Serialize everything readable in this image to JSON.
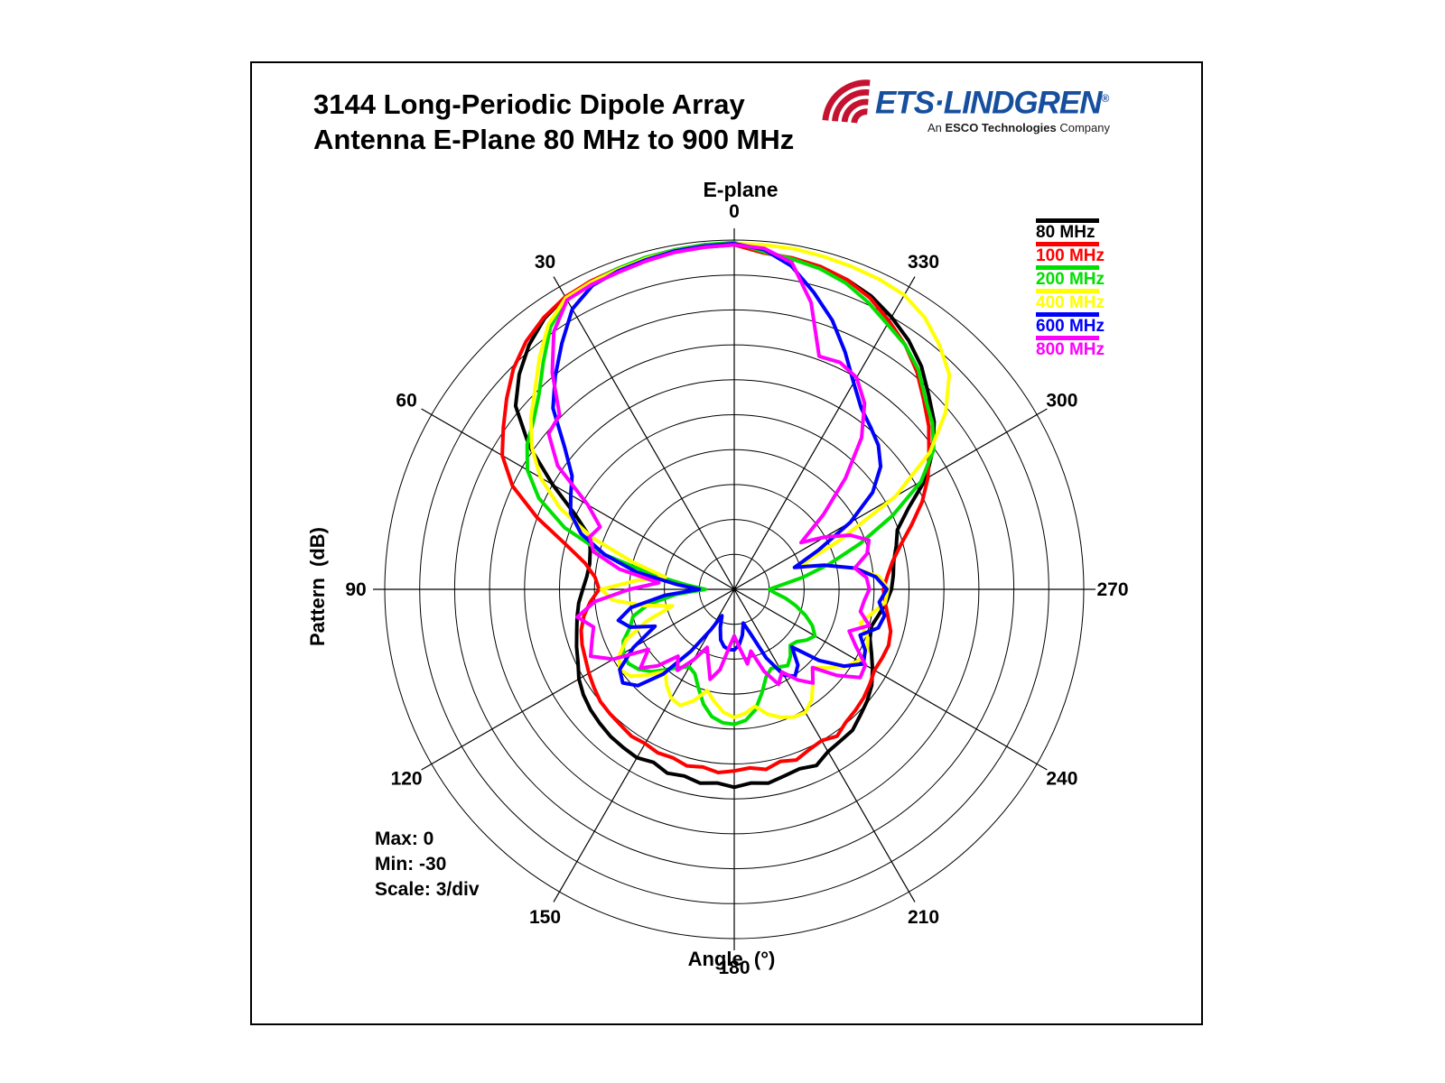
{
  "page": {
    "title_line1": "3144 Long-Periodic Dipole Array",
    "title_line2": "Antenna E-Plane 80 MHz to 900 MHz"
  },
  "logo": {
    "brand": "ETS·LINDGREN",
    "registered": "®",
    "tagline_an": "An ",
    "tagline_bold": "ESCO Technologies",
    "tagline_company": " Company",
    "brand_color": "#164f9e",
    "waves_color": "#c41230"
  },
  "annotations": {
    "max": "Max: 0",
    "min": "Min: -30",
    "scale": "Scale: 3/div"
  },
  "chart_data": {
    "type": "polar-line",
    "title": "E-plane",
    "radial_axis": {
      "label": "Pattern  (dB)",
      "max": 0,
      "min": -30,
      "scale_per_division": 3,
      "divisions": 10,
      "grid": true
    },
    "angular_axis": {
      "label": "Angle  (°)",
      "zero_position": "top",
      "direction": "counterclockwise",
      "tick_labels": [
        "0",
        "30",
        "60",
        "90",
        "120",
        "150",
        "180",
        "210",
        "240",
        "270",
        "300",
        "330"
      ],
      "spoke_step_deg": 30
    },
    "legend": {
      "position": "upper-right"
    },
    "angles_deg": [
      0,
      5,
      10,
      15,
      20,
      25,
      30,
      35,
      40,
      45,
      50,
      55,
      60,
      65,
      70,
      75,
      80,
      85,
      90,
      95,
      100,
      105,
      110,
      115,
      120,
      125,
      130,
      135,
      140,
      145,
      150,
      155,
      160,
      165,
      170,
      175,
      180,
      185,
      190,
      195,
      200,
      205,
      210,
      215,
      220,
      225,
      230,
      235,
      240,
      245,
      250,
      255,
      260,
      265,
      270,
      275,
      280,
      285,
      290,
      295,
      300,
      305,
      310,
      315,
      320,
      325,
      330,
      335,
      340,
      345,
      350,
      355
    ],
    "series": [
      {
        "name": "80 MHz",
        "color": "#000000",
        "values_db": [
          -0.3,
          -0.3,
          -0.4,
          -0.5,
          -0.7,
          -0.85,
          -1.0,
          -1.6,
          -2.6,
          -3.9,
          -5.5,
          -8.5,
          -12.0,
          -15.0,
          -16.8,
          -17.2,
          -17.4,
          -17.3,
          -17.0,
          -16.6,
          -16.3,
          -16.0,
          -15.6,
          -15.2,
          -14.6,
          -14.2,
          -13.9,
          -13.7,
          -13.5,
          -13.4,
          -13.3,
          -13.6,
          -13.2,
          -13.4,
          -13.1,
          -13.3,
          -13.0,
          -13.3,
          -13.1,
          -13.4,
          -13.6,
          -13.3,
          -13.9,
          -14.1,
          -14.2,
          -14.7,
          -15.1,
          -15.6,
          -16.3,
          -17.0,
          -17.6,
          -17.8,
          -17.4,
          -16.9,
          -16.5,
          -16.3,
          -16.1,
          -15.6,
          -15.1,
          -13.5,
          -11.0,
          -9.2,
          -7.6,
          -6.4,
          -5.0,
          -3.9,
          -3.0,
          -2.2,
          -1.7,
          -1.4,
          -1.2,
          -0.9
        ]
      },
      {
        "name": "100 MHz",
        "color": "#ff0000",
        "values_db": [
          -0.4,
          -0.5,
          -0.6,
          -0.6,
          -0.7,
          -0.8,
          -1.0,
          -1.5,
          -2.2,
          -3.2,
          -4.5,
          -5.8,
          -7.0,
          -9.0,
          -12.0,
          -15.0,
          -17.0,
          -18.0,
          -18.4,
          -17.6,
          -16.9,
          -16.4,
          -16.1,
          -15.9,
          -15.6,
          -15.3,
          -15.0,
          -14.9,
          -14.8,
          -14.6,
          -14.7,
          -14.5,
          -14.6,
          -14.3,
          -14.5,
          -14.2,
          -14.4,
          -14.6,
          -14.3,
          -14.7,
          -14.4,
          -14.8,
          -15.0,
          -14.6,
          -15.1,
          -15.3,
          -15.5,
          -15.8,
          -16.1,
          -16.0,
          -15.9,
          -16.1,
          -16.6,
          -17.0,
          -17.2,
          -16.8,
          -16.2,
          -15.2,
          -13.8,
          -12.2,
          -10.8,
          -9.6,
          -8.2,
          -7.0,
          -5.6,
          -4.4,
          -3.4,
          -2.4,
          -1.7,
          -1.3,
          -1.1,
          -1.0
        ]
      },
      {
        "name": "200 MHz",
        "color": "#00e000",
        "values_db": [
          -0.2,
          -0.3,
          -0.4,
          -0.5,
          -0.7,
          -0.9,
          -1.2,
          -2.5,
          -4.5,
          -6.3,
          -7.5,
          -8.3,
          -9.5,
          -11.5,
          -14.5,
          -18.5,
          -23.0,
          -26.0,
          -27.5,
          -25.0,
          -22.5,
          -21.0,
          -20.5,
          -19.5,
          -19.0,
          -18.9,
          -19.3,
          -20.0,
          -21.0,
          -21.8,
          -22.3,
          -22.0,
          -21.0,
          -19.8,
          -18.9,
          -18.5,
          -18.4,
          -18.7,
          -19.5,
          -20.8,
          -22.0,
          -22.5,
          -22.3,
          -22.0,
          -22.5,
          -23.2,
          -23.0,
          -22.4,
          -22.0,
          -22.6,
          -23.5,
          -24.5,
          -25.5,
          -26.5,
          -27.0,
          -26.0,
          -24.0,
          -21.5,
          -18.5,
          -15.0,
          -11.5,
          -9.1,
          -7.8,
          -6.8,
          -5.4,
          -4.4,
          -3.7,
          -2.8,
          -2.0,
          -1.5,
          -1.2,
          -0.9
        ]
      },
      {
        "name": "400 MHz",
        "color": "#ffff00",
        "values_db": [
          -0.3,
          -0.4,
          -0.5,
          -0.6,
          -0.8,
          -0.9,
          -1.1,
          -2.2,
          -4.0,
          -5.8,
          -7.2,
          -8.8,
          -10.8,
          -13.5,
          -17.0,
          -21.0,
          -24.0,
          -21.5,
          -18.6,
          -19.5,
          -22.0,
          -24.5,
          -22.0,
          -19.8,
          -18.6,
          -18.0,
          -18.4,
          -19.6,
          -20.8,
          -19.9,
          -19.2,
          -19.0,
          -19.8,
          -21.0,
          -20.2,
          -19.4,
          -19.0,
          -19.3,
          -19.8,
          -18.9,
          -18.3,
          -17.9,
          -17.8,
          -18.4,
          -19.5,
          -20.5,
          -19.5,
          -18.4,
          -17.7,
          -17.4,
          -17.8,
          -18.8,
          -18.0,
          -17.0,
          -16.8,
          -17.5,
          -19.5,
          -22.0,
          -24.0,
          -20.0,
          -14.0,
          -9.5,
          -6.3,
          -3.9,
          -2.6,
          -1.5,
          -0.8,
          -0.6,
          -0.5,
          -0.4,
          -0.3,
          -0.3
        ]
      },
      {
        "name": "600 MHz",
        "color": "#0000ff",
        "values_db": [
          -0.3,
          -0.4,
          -0.5,
          -0.7,
          -0.9,
          -1.2,
          -2.2,
          -4.2,
          -6.1,
          -8.0,
          -11.0,
          -13.0,
          -13.8,
          -14.5,
          -16.0,
          -18.5,
          -21.5,
          -25.0,
          -27.0,
          -24.0,
          -21.0,
          -19.7,
          -20.5,
          -22.5,
          -20.0,
          -18.0,
          -17.5,
          -18.3,
          -20.5,
          -23.5,
          -26.0,
          -27.5,
          -26.5,
          -25.5,
          -25.0,
          -24.8,
          -24.8,
          -25.2,
          -26.0,
          -27.0,
          -26.0,
          -23.5,
          -21.5,
          -20.9,
          -21.5,
          -23.0,
          -20.5,
          -18.5,
          -17.2,
          -17.6,
          -18.5,
          -17.2,
          -16.9,
          -17.5,
          -16.9,
          -17.8,
          -19.5,
          -22.0,
          -24.5,
          -22.0,
          -18.5,
          -15.5,
          -13.6,
          -12.5,
          -11.8,
          -11.0,
          -9.5,
          -7.5,
          -5.4,
          -3.6,
          -1.8,
          -0.7
        ]
      },
      {
        "name": "800 MHz",
        "color": "#ff00ff",
        "values_db": [
          -0.4,
          -0.5,
          -0.6,
          -0.8,
          -1.0,
          -1.1,
          -1.3,
          -3.0,
          -5.7,
          -8.8,
          -9.2,
          -11.5,
          -15.5,
          -17.3,
          -16.8,
          -17.5,
          -20.0,
          -23.5,
          -21.0,
          -18.0,
          -16.3,
          -17.5,
          -17.0,
          -16.4,
          -18.0,
          -21.0,
          -19.5,
          -20.7,
          -22.5,
          -21.5,
          -23.0,
          -24.5,
          -23.5,
          -22.0,
          -23.0,
          -25.0,
          -26.0,
          -25.0,
          -23.5,
          -24.5,
          -22.5,
          -21.0,
          -21.8,
          -20.5,
          -19.5,
          -20.5,
          -18.5,
          -16.8,
          -17.0,
          -18.5,
          -19.5,
          -18.0,
          -19.0,
          -18.8,
          -18.4,
          -18.6,
          -19.5,
          -18.2,
          -17.7,
          -19.0,
          -21.0,
          -23.0,
          -20.0,
          -16.5,
          -13.0,
          -10.5,
          -9.0,
          -8.5,
          -8.7,
          -4.5,
          -1.5,
          -0.6
        ]
      }
    ]
  }
}
